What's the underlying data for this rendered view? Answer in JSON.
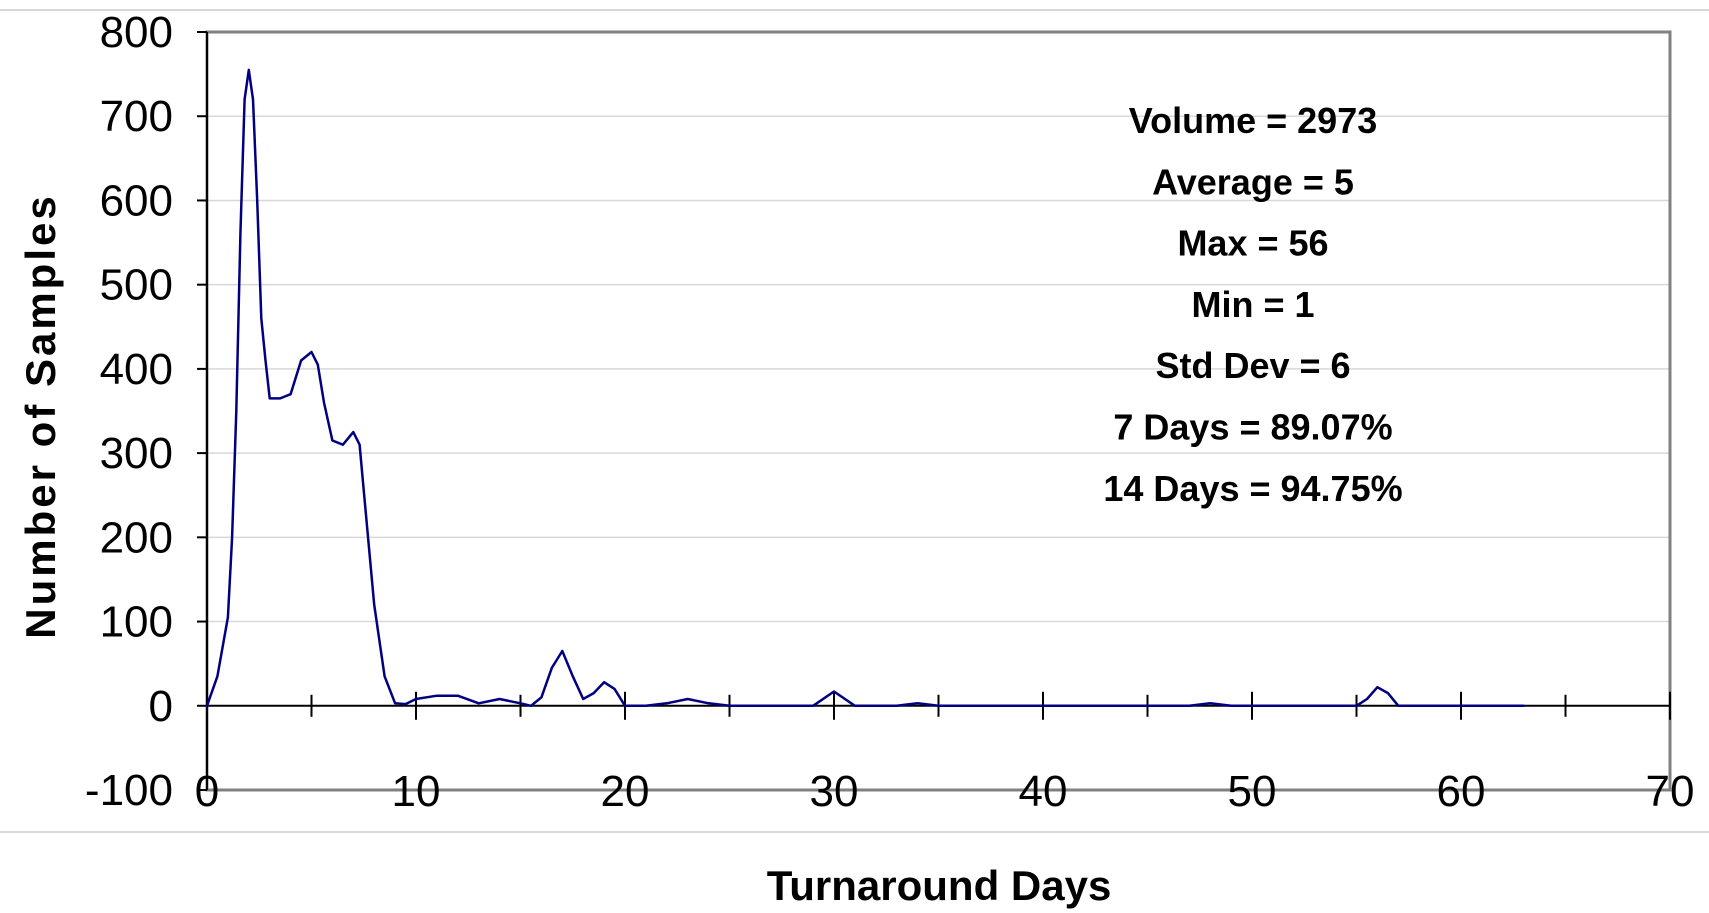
{
  "chart_data": {
    "type": "line",
    "title": "",
    "xlabel": "Turnaround Days",
    "ylabel": "Number of Samples",
    "xlim": [
      0,
      70
    ],
    "ylim": [
      -100,
      800
    ],
    "x_ticks": [
      0,
      10,
      20,
      30,
      40,
      50,
      60,
      70
    ],
    "y_ticks": [
      -100,
      0,
      100,
      200,
      300,
      400,
      500,
      600,
      700,
      800
    ],
    "grid": "horizontal",
    "colors": {
      "line": "#000080",
      "axes": "#000000",
      "frame": "#808080",
      "grid": "#d8d8d8"
    },
    "annotations": [
      "Volume = 2973",
      "Average = 5",
      "Max = 56",
      "Min = 1",
      "Std Dev = 6",
      "7 Days = 89.07%",
      "14 Days = 94.75%"
    ],
    "series": [
      {
        "x": [
          0,
          0.5,
          1,
          1.2,
          1.4,
          1.6,
          1.8,
          2,
          2.2,
          2.4,
          2.6,
          2.8,
          3,
          3.5,
          4,
          4.5,
          5,
          5.3,
          5.6,
          6,
          6.5,
          7,
          7.3,
          7.5,
          8,
          8.5,
          9,
          9.5,
          10,
          11,
          12,
          13,
          14,
          15,
          15.5,
          16,
          16.5,
          17,
          17.5,
          18,
          18.5,
          19,
          19.5,
          20,
          21,
          22,
          23,
          24,
          25,
          29,
          30,
          31,
          33,
          34,
          35,
          47,
          48,
          49,
          55,
          55.5,
          56,
          56.5,
          57,
          63
        ],
        "y": [
          0,
          35,
          105,
          200,
          350,
          560,
          720,
          755,
          720,
          600,
          460,
          410,
          365,
          365,
          370,
          410,
          420,
          405,
          360,
          315,
          310,
          325,
          310,
          255,
          120,
          35,
          3,
          2,
          8,
          12,
          12,
          3,
          8,
          3,
          0,
          10,
          45,
          65,
          35,
          8,
          15,
          28,
          20,
          0,
          0,
          3,
          8,
          3,
          0,
          0,
          17,
          0,
          0,
          3,
          0,
          0,
          3,
          0,
          0,
          8,
          22,
          15,
          0,
          0
        ]
      }
    ]
  }
}
